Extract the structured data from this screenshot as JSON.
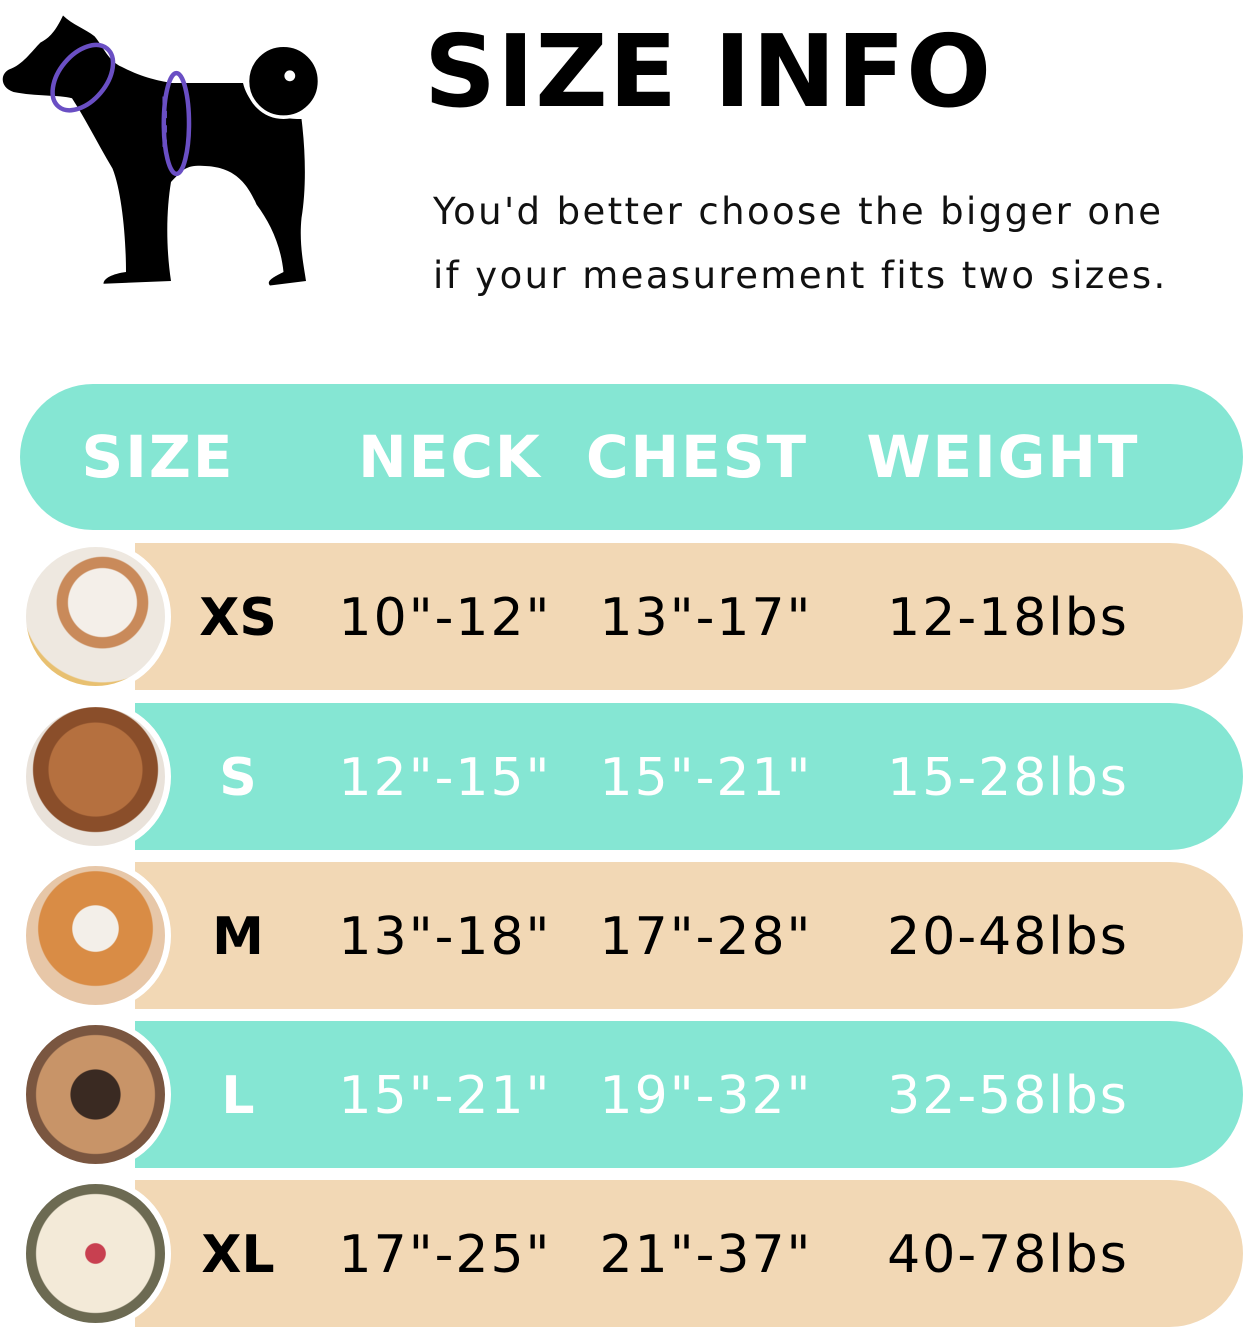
{
  "title": "SIZE INFO",
  "subtitle": [
    "You'd better choose the bigger one",
    "if your measurement fits two sizes."
  ],
  "colors": {
    "teal": "#85e6d3",
    "beige": "#f2d8b5",
    "measure_ring": "#6a4fc4"
  },
  "icons": {
    "diagram": "dog-silhouette-with-neck-and-chest-rings"
  },
  "table": {
    "headers": [
      "SIZE",
      "NECK",
      "CHEST",
      "WEIGHT"
    ],
    "rows": [
      {
        "size": "XS",
        "neck": "10\"-12\"",
        "chest": "13\"-17\"",
        "weight": "12-18lbs",
        "photo": "pomeranian-photo"
      },
      {
        "size": "S",
        "neck": "12\"-15\"",
        "chest": "15\"-21\"",
        "weight": "15-28lbs",
        "photo": "poodle-photo"
      },
      {
        "size": "M",
        "neck": "13\"-18\"",
        "chest": "17\"-28\"",
        "weight": "20-48lbs",
        "photo": "shiba-inu-photo"
      },
      {
        "size": "L",
        "neck": "15\"-21\"",
        "chest": "19\"-32\"",
        "weight": "32-58lbs",
        "photo": "french-bulldog-photo"
      },
      {
        "size": "XL",
        "neck": "17\"-25\"",
        "chest": "21\"-37\"",
        "weight": "40-78lbs",
        "photo": "labrador-photo"
      }
    ]
  }
}
